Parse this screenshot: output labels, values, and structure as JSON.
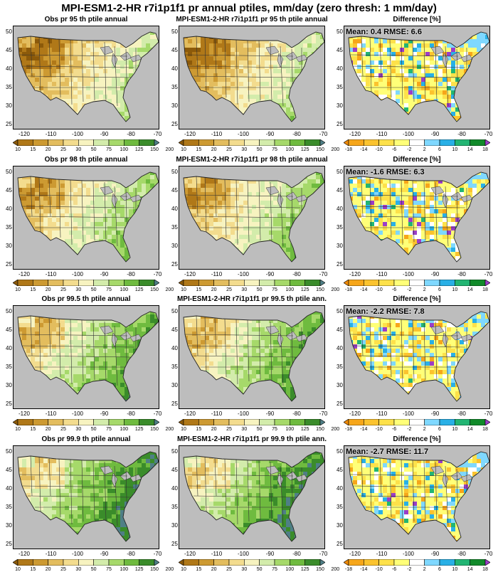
{
  "figure": {
    "title": "MPI-ESM1-2-HR r7i1p1f1 pr annual ptiles, mm/day (zero thresh: 1 mm/day)"
  },
  "axes": {
    "lon_ticks": [
      "-120",
      "-110",
      "-100",
      "-90",
      "-80",
      "-70"
    ],
    "lat_ticks": [
      "50",
      "45",
      "40",
      "35",
      "30",
      "25"
    ]
  },
  "colorbars": {
    "precip": {
      "labels": [
        "10",
        "15",
        "20",
        "25",
        "30",
        "50",
        "75",
        "100",
        "125",
        "150",
        "200"
      ],
      "colors": [
        "#8c5a0a",
        "#b07818",
        "#cd9a32",
        "#e3bd5e",
        "#f3dc8e",
        "#f7f3c0",
        "#d3ecab",
        "#a6d96a",
        "#6fbb3f",
        "#3a8c2a",
        "#4f7f86"
      ]
    },
    "difference": {
      "labels": [
        "-18",
        "-14",
        "-10",
        "-6",
        "-2",
        "2",
        "6",
        "10",
        "14",
        "18"
      ],
      "colors": [
        "#f08a08",
        "#f6a61a",
        "#fbc32e",
        "#fde14a",
        "#ffff78",
        "#ffffff",
        "#7fd8ff",
        "#29b0e6",
        "#22b573",
        "#118a2a",
        "#9b3dc8"
      ]
    }
  },
  "rows": [
    {
      "obs_title": "Obs pr 95 th ptile annual",
      "model_title": "MPI-ESM1-2-HR r7i1p1f1 pr 95 th ptile annual",
      "diff_title": "Difference [%]",
      "diff_stats": "Mean: 0.4  RMSE: 6.6",
      "mean": 0.4,
      "rmse": 6.6
    },
    {
      "obs_title": "Obs pr 98 th ptile annual",
      "model_title": "MPI-ESM1-2-HR r7i1p1f1 pr 98 th ptile annual",
      "diff_title": "Difference [%]",
      "diff_stats": "Mean: -1.6  RMSE: 6.3",
      "mean": -1.6,
      "rmse": 6.3
    },
    {
      "obs_title": "Obs pr 99.5 th ptile annual",
      "model_title": "MPI-ESM1-2-HR r7i1p1f1 pr 99.5 th ptile ann.",
      "diff_title": "Difference [%]",
      "diff_stats": "Mean: -2.2  RMSE: 7.8",
      "mean": -2.2,
      "rmse": 7.8
    },
    {
      "obs_title": "Obs pr 99.9 th ptile annual",
      "model_title": "MPI-ESM1-2-HR r7i1p1f1 pr 99.9 th ptile ann.",
      "diff_title": "Difference [%]",
      "diff_stats": "Mean: -2.7  RMSE: 11.7",
      "mean": -2.7,
      "rmse": 11.7
    }
  ]
}
